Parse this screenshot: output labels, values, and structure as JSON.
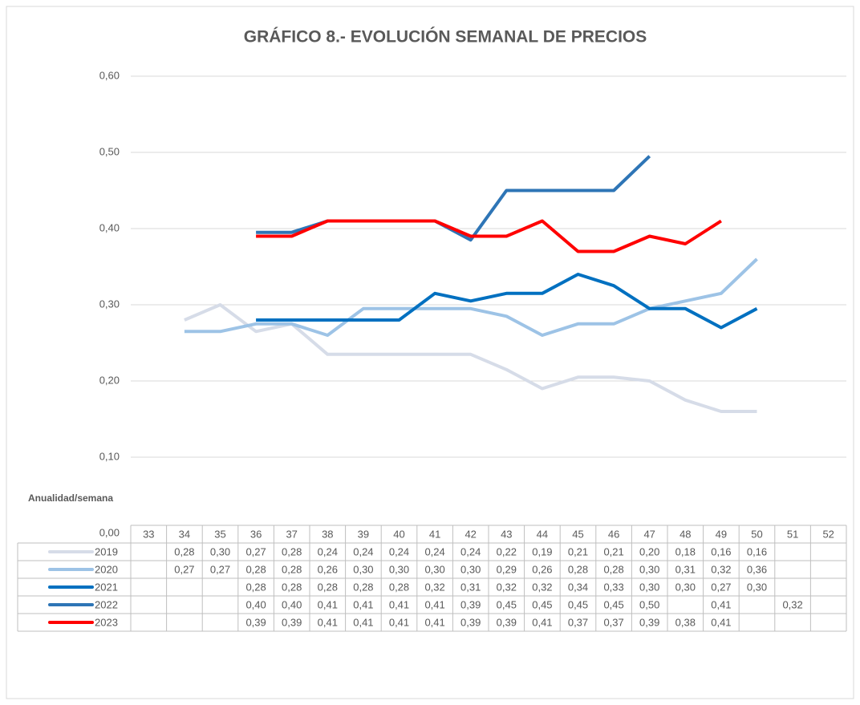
{
  "chart_data": {
    "type": "line",
    "title": "GRÁFICO 8.- EVOLUCIÓN SEMANAL DE PRECIOS",
    "xlabel": "Anualidad/semana",
    "categories": [
      "33",
      "34",
      "35",
      "36",
      "37",
      "38",
      "39",
      "40",
      "41",
      "42",
      "43",
      "44",
      "45",
      "46",
      "47",
      "48",
      "49",
      "50",
      "51",
      "52"
    ],
    "ylim": [
      0,
      0.6
    ],
    "yticks": [
      {
        "value": 0,
        "label": "0,00"
      },
      {
        "value": 0.1,
        "label": "0,10"
      },
      {
        "value": 0.2,
        "label": "0,20"
      },
      {
        "value": 0.3,
        "label": "0,30"
      },
      {
        "value": 0.4,
        "label": "0,40"
      },
      {
        "value": 0.5,
        "label": "0,50"
      },
      {
        "value": 0.6,
        "label": "0,60"
      }
    ],
    "grid": true,
    "series": [
      {
        "name": "2019",
        "color": "#d6dce8",
        "values": [
          null,
          0.28,
          0.3,
          0.265,
          0.275,
          0.235,
          0.235,
          0.235,
          0.235,
          0.235,
          0.215,
          0.19,
          0.205,
          0.205,
          0.2,
          0.175,
          0.16,
          0.16,
          null,
          null
        ],
        "value_labels": [
          null,
          "0,28",
          "0,30",
          "0,27",
          "0,28",
          "0,24",
          "0,24",
          "0,24",
          "0,24",
          "0,24",
          "0,22",
          "0,19",
          "0,21",
          "0,21",
          "0,20",
          "0,18",
          "0,16",
          "0,16",
          null,
          null
        ]
      },
      {
        "name": "2020",
        "color": "#9dc3e6",
        "values": [
          null,
          0.265,
          0.265,
          0.275,
          0.275,
          0.26,
          0.295,
          0.295,
          0.295,
          0.295,
          0.285,
          0.26,
          0.275,
          0.275,
          0.295,
          0.305,
          0.315,
          0.36,
          null,
          null
        ],
        "value_labels": [
          null,
          "0,27",
          "0,27",
          "0,28",
          "0,28",
          "0,26",
          "0,30",
          "0,30",
          "0,30",
          "0,30",
          "0,29",
          "0,26",
          "0,28",
          "0,28",
          "0,30",
          "0,31",
          "0,32",
          "0,36",
          null,
          null
        ]
      },
      {
        "name": "2021",
        "color": "#0070c0",
        "values": [
          null,
          null,
          null,
          0.28,
          0.28,
          0.28,
          0.28,
          0.28,
          0.315,
          0.305,
          0.315,
          0.315,
          0.34,
          0.325,
          0.295,
          0.295,
          0.27,
          0.295,
          null,
          null
        ],
        "value_labels": [
          null,
          null,
          null,
          "0,28",
          "0,28",
          "0,28",
          "0,28",
          "0,28",
          "0,32",
          "0,31",
          "0,32",
          "0,32",
          "0,34",
          "0,33",
          "0,30",
          "0,30",
          "0,27",
          "0,30",
          null,
          null
        ]
      },
      {
        "name": "2022",
        "color": "#2e75b6",
        "values": [
          null,
          null,
          null,
          0.395,
          0.395,
          0.41,
          0.41,
          0.41,
          0.41,
          0.385,
          0.45,
          0.45,
          0.45,
          0.45,
          0.495,
          null,
          0.41,
          null,
          0.32,
          null
        ],
        "value_labels": [
          null,
          null,
          null,
          "0,40",
          "0,40",
          "0,41",
          "0,41",
          "0,41",
          "0,41",
          "0,39",
          "0,45",
          "0,45",
          "0,45",
          "0,45",
          "0,50",
          null,
          "0,41",
          null,
          "0,32",
          null
        ]
      },
      {
        "name": "2023",
        "color": "#ff0000",
        "values": [
          null,
          null,
          null,
          0.39,
          0.39,
          0.41,
          0.41,
          0.41,
          0.41,
          0.39,
          0.39,
          0.41,
          0.37,
          0.37,
          0.39,
          0.38,
          0.41,
          null,
          null,
          null
        ],
        "value_labels": [
          null,
          null,
          null,
          "0,39",
          "0,39",
          "0,41",
          "0,41",
          "0,41",
          "0,41",
          "0,39",
          "0,39",
          "0,41",
          "0,37",
          "0,37",
          "0,39",
          "0,38",
          "0,41",
          null,
          null,
          null
        ]
      }
    ]
  }
}
